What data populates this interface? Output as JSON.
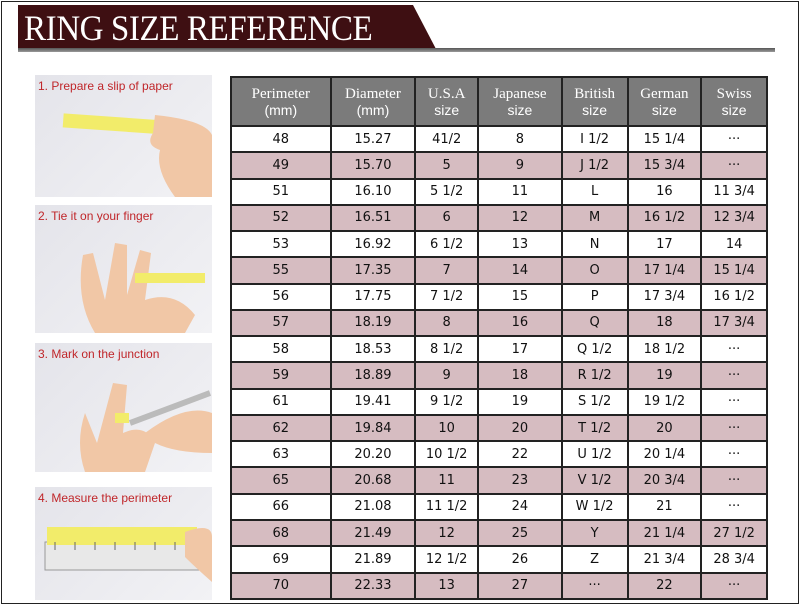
{
  "title": "RING SIZE REFERENCE",
  "colors": {
    "title_bg": "#3e0f12",
    "header_bg": "#7b7b7b",
    "stripe": "#d6bcc1",
    "step_label": "#c0262a"
  },
  "steps": [
    {
      "label": "1. Prepare a slip of paper",
      "icon": "hand-holding-paper-strip"
    },
    {
      "label": "2. Tie it on your finger",
      "icon": "hand-with-strip-on-finger"
    },
    {
      "label": "3. Mark on the junction",
      "icon": "hand-marking-with-pen"
    },
    {
      "label": "4. Measure the perimeter",
      "icon": "strip-on-ruler"
    }
  ],
  "table": {
    "headers": [
      {
        "line1": "Perimeter",
        "line2": "(mm)"
      },
      {
        "line1": "Diameter",
        "line2": "(mm)"
      },
      {
        "line1": "U.S.A",
        "line2": "size"
      },
      {
        "line1": "Japanese",
        "line2": "size"
      },
      {
        "line1": "British",
        "line2": "size"
      },
      {
        "line1": "German",
        "line2": "size"
      },
      {
        "line1": "Swiss",
        "line2": "size"
      }
    ],
    "rows": [
      [
        "48",
        "15.27",
        "41/2",
        "8",
        "I 1/2",
        "15 1/4",
        "···"
      ],
      [
        "49",
        "15.70",
        "5",
        "9",
        "J 1/2",
        "15 3/4",
        "···"
      ],
      [
        "51",
        "16.10",
        "5 1/2",
        "11",
        "L",
        "16",
        "11 3/4"
      ],
      [
        "52",
        "16.51",
        "6",
        "12",
        "M",
        "16 1/2",
        "12 3/4"
      ],
      [
        "53",
        "16.92",
        "6 1/2",
        "13",
        "N",
        "17",
        "14"
      ],
      [
        "55",
        "17.35",
        "7",
        "14",
        "O",
        "17 1/4",
        "15 1/4"
      ],
      [
        "56",
        "17.75",
        "7 1/2",
        "15",
        "P",
        "17 3/4",
        "16 1/2"
      ],
      [
        "57",
        "18.19",
        "8",
        "16",
        "Q",
        "18",
        "17 3/4"
      ],
      [
        "58",
        "18.53",
        "8 1/2",
        "17",
        "Q  1/2",
        "18 1/2",
        "···"
      ],
      [
        "59",
        "18.89",
        "9",
        "18",
        "R 1/2",
        "19",
        "···"
      ],
      [
        "61",
        "19.41",
        "9 1/2",
        "19",
        "S 1/2",
        "19 1/2",
        "···"
      ],
      [
        "62",
        "19.84",
        "10",
        "20",
        "T 1/2",
        "20",
        "···"
      ],
      [
        "63",
        "20.20",
        "10 1/2",
        "22",
        "U 1/2",
        "20 1/4",
        "···"
      ],
      [
        "65",
        "20.68",
        "11",
        "23",
        "V 1/2",
        "20 3/4",
        "···"
      ],
      [
        "66",
        "21.08",
        "11 1/2",
        "24",
        "W 1/2",
        "21",
        "···"
      ],
      [
        "68",
        "21.49",
        "12",
        "25",
        "Y",
        "21 1/4",
        "27 1/2"
      ],
      [
        "69",
        "21.89",
        "12 1/2",
        "26",
        "Z",
        "21 3/4",
        "28 3/4"
      ],
      [
        "70",
        "22.33",
        "13",
        "27",
        "···",
        "22",
        "···"
      ]
    ]
  }
}
